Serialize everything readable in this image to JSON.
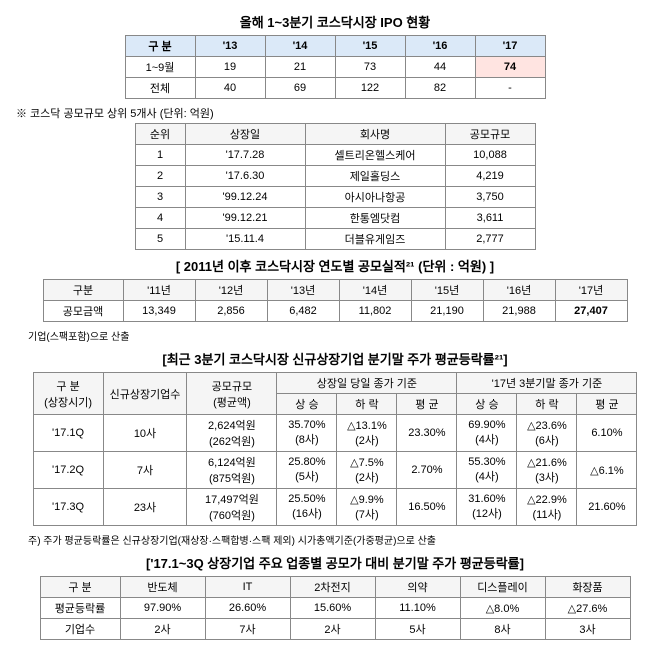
{
  "t1": {
    "title": "올해 1~3분기 코스닥시장 IPO 현황",
    "cols": [
      "구 분",
      "'13",
      "'14",
      "'15",
      "'16",
      "'17"
    ],
    "rows": [
      {
        "c": [
          "1~9월",
          "19",
          "21",
          "73",
          "44",
          "74"
        ],
        "hl": 5
      },
      {
        "c": [
          "전체",
          "40",
          "69",
          "122",
          "82",
          "-"
        ]
      }
    ],
    "widths": [
      70,
      70,
      70,
      70,
      70,
      70
    ],
    "blue": true
  },
  "t2": {
    "sub": "※ 코스닥 공모규모 상위 5개사 (단위: 억원)",
    "cols": [
      "순위",
      "상장일",
      "회사명",
      "공모규모"
    ],
    "rows": [
      {
        "c": [
          "1",
          "'17.7.28",
          "셀트리온헬스케어",
          "10,088"
        ]
      },
      {
        "c": [
          "2",
          "'17.6.30",
          "제일홀딩스",
          "4,219"
        ]
      },
      {
        "c": [
          "3",
          "'99.12.24",
          "아시아나항공",
          "3,750"
        ]
      },
      {
        "c": [
          "4",
          "'99.12.21",
          "한통엠닷컴",
          "3,611"
        ]
      },
      {
        "c": [
          "5",
          "'15.11.4",
          "더블유게임즈",
          "2,777"
        ]
      }
    ],
    "widths": [
      50,
      120,
      140,
      90
    ]
  },
  "t3": {
    "title": "[ 2011년 이후 코스닥시장 연도별 공모실적²¹ (단위 : 억원) ]",
    "cols": [
      "구분",
      "'11년",
      "'12년",
      "'13년",
      "'14년",
      "'15년",
      "'16년",
      "'17년"
    ],
    "rows": [
      {
        "c": [
          "공모금액",
          "13,349",
          "2,856",
          "6,482",
          "11,802",
          "21,190",
          "21,988",
          "27,407"
        ],
        "boldLast": true
      }
    ],
    "widths": [
      80,
      72,
      72,
      72,
      72,
      72,
      72,
      72
    ],
    "note": "기업(스팩포함)으로 산출"
  },
  "t4": {
    "title": "[최근 3분기 코스닥시장 신규상장기업 분기말 주가 평균등락률²¹]",
    "head1": [
      "구 분<br>(상장시기)",
      "신규상장기업수",
      "공모규모<br>(평균액)",
      "상장일 당일 종가 기준",
      "'17년 3분기말 종가 기준"
    ],
    "head2": [
      "상 승",
      "하 락",
      "평 균",
      "상 승",
      "하 락",
      "평 균"
    ],
    "rows": [
      {
        "c": [
          "'17.1Q",
          "10사",
          "2,624억원<br>(262억원)",
          "35.70%<br>(8사)",
          "△13.1%<br>(2사)",
          "23.30%",
          "69.90%<br>(4사)",
          "△23.6%<br>(6사)",
          "6.10%"
        ]
      },
      {
        "c": [
          "'17.2Q",
          "7사",
          "6,124억원<br>(875억원)",
          "25.80%<br>(5사)",
          "△7.5%<br>(2사)",
          "2.70%",
          "55.30%<br>(4사)",
          "△21.6%<br>(3사)",
          "△6.1%"
        ]
      },
      {
        "c": [
          "'17.3Q",
          "23사",
          "17,497억원<br>(760억원)",
          "25.50%<br>(16사)",
          "△9.9%<br>(7사)",
          "16.50%",
          "31.60%<br>(12사)",
          "△22.9%<br>(11사)",
          "21.60%"
        ]
      }
    ],
    "widths": [
      70,
      80,
      90,
      60,
      60,
      60,
      60,
      60,
      60
    ],
    "note": "주) 주가 평균등락률은 신규상장기업(재상장·스팩합병·스팩 제외) 시가총액기준(가중평균)으로 산출"
  },
  "t5": {
    "title": "['17.1~3Q 상장기업 주요 업종별 공모가 대비 분기말 주가 평균등락률]",
    "cols": [
      "구 분",
      "반도체",
      "IT",
      "2차전지",
      "의약",
      "디스플레이",
      "화장품"
    ],
    "rows": [
      {
        "c": [
          "평균등락률",
          "97.90%",
          "26.60%",
          "15.60%",
          "11.10%",
          "△8.0%",
          "△27.6%"
        ]
      },
      {
        "c": [
          "기업수",
          "2사",
          "7사",
          "2사",
          "5사",
          "8사",
          "3사"
        ]
      }
    ],
    "widths": [
      80,
      85,
      85,
      85,
      85,
      85,
      85
    ]
  }
}
